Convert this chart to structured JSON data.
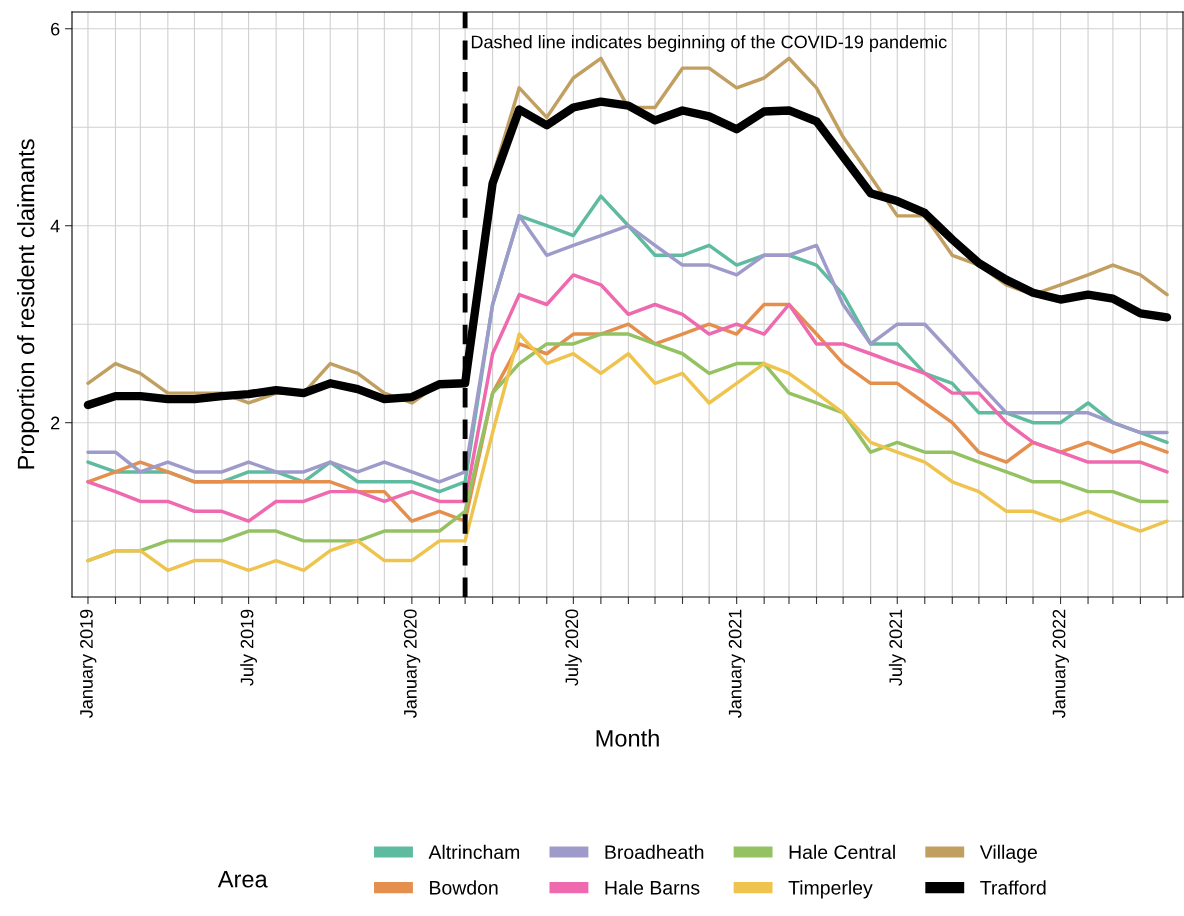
{
  "chart_data": {
    "type": "line",
    "xlabel": "Month",
    "ylabel": "Proportion of resident claimants",
    "legend_title": "Area",
    "legend": "bottom",
    "grid": true,
    "line_style": "solid",
    "marker": "none",
    "x": [
      "2019-01",
      "2019-02",
      "2019-03",
      "2019-04",
      "2019-05",
      "2019-06",
      "2019-07",
      "2019-08",
      "2019-09",
      "2019-10",
      "2019-11",
      "2019-12",
      "2020-01",
      "2020-02",
      "2020-03",
      "2020-04",
      "2020-05",
      "2020-06",
      "2020-07",
      "2020-08",
      "2020-09",
      "2020-10",
      "2020-11",
      "2020-12",
      "2021-01",
      "2021-02",
      "2021-03",
      "2021-04",
      "2021-05",
      "2021-06",
      "2021-07",
      "2021-08",
      "2021-09",
      "2021-10",
      "2021-11",
      "2021-12",
      "2022-01",
      "2022-02",
      "2022-03",
      "2022-04",
      "2022-05"
    ],
    "xlim": [
      "2018-12-14",
      "2022-05-19"
    ],
    "xticks": [
      {
        "value": "2019-01",
        "label": "January 2019"
      },
      {
        "value": "2019-02",
        "label": null
      },
      {
        "value": "2019-03",
        "label": null
      },
      {
        "value": "2019-04",
        "label": null
      },
      {
        "value": "2019-05",
        "label": null
      },
      {
        "value": "2019-06",
        "label": null
      },
      {
        "value": "2019-07",
        "label": "July 2019"
      },
      {
        "value": "2019-08",
        "label": null
      },
      {
        "value": "2019-09",
        "label": null
      },
      {
        "value": "2019-10",
        "label": null
      },
      {
        "value": "2019-11",
        "label": null
      },
      {
        "value": "2019-12",
        "label": null
      },
      {
        "value": "2020-01",
        "label": "January 2020"
      },
      {
        "value": "2020-02",
        "label": null
      },
      {
        "value": "2020-03",
        "label": null
      },
      {
        "value": "2020-04",
        "label": null
      },
      {
        "value": "2020-05",
        "label": null
      },
      {
        "value": "2020-06",
        "label": null
      },
      {
        "value": "2020-07",
        "label": "July 2020"
      },
      {
        "value": "2020-08",
        "label": null
      },
      {
        "value": "2020-09",
        "label": null
      },
      {
        "value": "2020-10",
        "label": null
      },
      {
        "value": "2020-11",
        "label": null
      },
      {
        "value": "2020-12",
        "label": null
      },
      {
        "value": "2021-01",
        "label": "January 2021"
      },
      {
        "value": "2021-02",
        "label": null
      },
      {
        "value": "2021-03",
        "label": null
      },
      {
        "value": "2021-04",
        "label": null
      },
      {
        "value": "2021-05",
        "label": null
      },
      {
        "value": "2021-06",
        "label": null
      },
      {
        "value": "2021-07",
        "label": "July 2021"
      },
      {
        "value": "2021-08",
        "label": null
      },
      {
        "value": "2021-09",
        "label": null
      },
      {
        "value": "2021-10",
        "label": null
      },
      {
        "value": "2021-11",
        "label": null
      },
      {
        "value": "2021-12",
        "label": null
      },
      {
        "value": "2022-01",
        "label": "January 2022"
      },
      {
        "value": "2022-02",
        "label": null
      },
      {
        "value": "2022-03",
        "label": null
      },
      {
        "value": "2022-04",
        "label": null
      },
      {
        "value": "2022-05",
        "label": null
      }
    ],
    "ylim": [
      0.23,
      6.17
    ],
    "yticks": [
      {
        "value": 1,
        "label": null
      },
      2,
      {
        "value": 3,
        "label": null
      },
      4,
      {
        "value": 5,
        "label": null
      },
      6
    ],
    "ref_lines": [
      {
        "axis": "x",
        "value": "2020-03",
        "label": null,
        "color": "#000000",
        "line_style": "dashed"
      }
    ],
    "annotations": [
      {
        "text": "Dashed line indicates beginning of the COVID-19 pandemic",
        "x": "2020-03",
        "y": 5.85
      }
    ],
    "series": [
      {
        "name": "Altrincham",
        "color": "#5fbba0",
        "values": [
          1.6,
          1.5,
          1.5,
          1.5,
          1.4,
          1.4,
          1.5,
          1.5,
          1.4,
          1.6,
          1.4,
          1.4,
          1.4,
          1.3,
          1.4,
          3.2,
          4.1,
          4.0,
          3.9,
          4.3,
          4.0,
          3.7,
          3.7,
          3.8,
          3.6,
          3.7,
          3.7,
          3.6,
          3.3,
          2.8,
          2.8,
          2.5,
          2.4,
          2.1,
          2.1,
          2.0,
          2.0,
          2.2,
          2.0,
          1.9,
          1.8
        ]
      },
      {
        "name": "Bowdon",
        "color": "#e48f4e",
        "values": [
          1.4,
          1.5,
          1.6,
          1.5,
          1.4,
          1.4,
          1.4,
          1.4,
          1.4,
          1.4,
          1.3,
          1.3,
          1.0,
          1.1,
          1.0,
          2.3,
          2.8,
          2.7,
          2.9,
          2.9,
          3.0,
          2.8,
          2.9,
          3.0,
          2.9,
          3.2,
          3.2,
          2.9,
          2.6,
          2.4,
          2.4,
          2.2,
          2.0,
          1.7,
          1.6,
          1.8,
          1.7,
          1.8,
          1.7,
          1.8,
          1.7
        ]
      },
      {
        "name": "Broadheath",
        "color": "#9e9bca",
        "values": [
          1.7,
          1.7,
          1.5,
          1.6,
          1.5,
          1.5,
          1.6,
          1.5,
          1.5,
          1.6,
          1.5,
          1.6,
          1.5,
          1.4,
          1.5,
          3.2,
          4.1,
          3.7,
          3.8,
          3.9,
          4.0,
          3.8,
          3.6,
          3.6,
          3.5,
          3.7,
          3.7,
          3.8,
          3.2,
          2.8,
          3.0,
          3.0,
          2.7,
          2.4,
          2.1,
          2.1,
          2.1,
          2.1,
          2.0,
          1.9,
          1.9
        ]
      },
      {
        "name": "Hale Barns",
        "color": "#ee69ad",
        "values": [
          1.4,
          1.3,
          1.2,
          1.2,
          1.1,
          1.1,
          1.0,
          1.2,
          1.2,
          1.3,
          1.3,
          1.2,
          1.3,
          1.2,
          1.2,
          2.7,
          3.3,
          3.2,
          3.5,
          3.4,
          3.1,
          3.2,
          3.1,
          2.9,
          3.0,
          2.9,
          3.2,
          2.8,
          2.8,
          2.7,
          2.6,
          2.5,
          2.3,
          2.3,
          2.0,
          1.8,
          1.7,
          1.6,
          1.6,
          1.6,
          1.5
        ]
      },
      {
        "name": "Hale Central",
        "color": "#94c162",
        "values": [
          0.6,
          0.7,
          0.7,
          0.8,
          0.8,
          0.8,
          0.9,
          0.9,
          0.8,
          0.8,
          0.8,
          0.9,
          0.9,
          0.9,
          1.1,
          2.3,
          2.6,
          2.8,
          2.8,
          2.9,
          2.9,
          2.8,
          2.7,
          2.5,
          2.6,
          2.6,
          2.3,
          2.2,
          2.1,
          1.7,
          1.8,
          1.7,
          1.7,
          1.6,
          1.5,
          1.4,
          1.4,
          1.3,
          1.3,
          1.2,
          1.2
        ]
      },
      {
        "name": "Timperley",
        "color": "#eec44e",
        "values": [
          0.6,
          0.7,
          0.7,
          0.5,
          0.6,
          0.6,
          0.5,
          0.6,
          0.5,
          0.7,
          0.8,
          0.6,
          0.6,
          0.8,
          0.8,
          1.9,
          2.9,
          2.6,
          2.7,
          2.5,
          2.7,
          2.4,
          2.5,
          2.2,
          2.4,
          2.6,
          2.5,
          2.3,
          2.1,
          1.8,
          1.7,
          1.6,
          1.4,
          1.3,
          1.1,
          1.1,
          1.0,
          1.1,
          1.0,
          0.9,
          1.0
        ]
      },
      {
        "name": "Village",
        "color": "#c19f61",
        "values": [
          2.4,
          2.6,
          2.5,
          2.3,
          2.3,
          2.3,
          2.2,
          2.3,
          2.3,
          2.6,
          2.5,
          2.3,
          2.2,
          2.4,
          2.4,
          4.5,
          5.4,
          5.1,
          5.5,
          5.7,
          5.2,
          5.2,
          5.6,
          5.6,
          5.4,
          5.5,
          5.7,
          5.4,
          4.9,
          4.5,
          4.1,
          4.1,
          3.7,
          3.6,
          3.4,
          3.3,
          3.4,
          3.5,
          3.6,
          3.5,
          3.3
        ]
      },
      {
        "name": "Trafford",
        "color": "#000000",
        "values": [
          2.18,
          2.27,
          2.27,
          2.24,
          2.24,
          2.27,
          2.29,
          2.33,
          2.3,
          2.4,
          2.34,
          2.24,
          2.26,
          2.39,
          2.4,
          4.43,
          5.18,
          5.02,
          5.2,
          5.26,
          5.22,
          5.07,
          5.17,
          5.11,
          4.98,
          5.16,
          5.17,
          5.06,
          4.7,
          4.33,
          4.25,
          4.13,
          3.86,
          3.62,
          3.45,
          3.32,
          3.25,
          3.3,
          3.26,
          3.11,
          3.07
        ]
      }
    ]
  }
}
